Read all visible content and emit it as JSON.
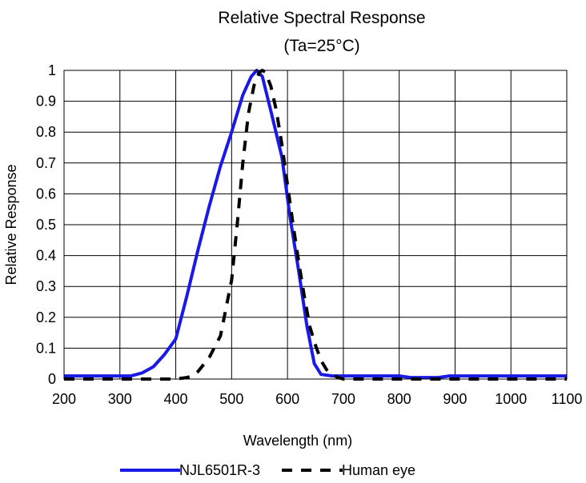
{
  "chart_data": {
    "type": "line",
    "title": "Relative Spectral Response",
    "subtitle": "(Ta=25°C)",
    "xlabel": "Wavelength (nm)",
    "ylabel": "Relative Response",
    "xlim": [
      200,
      1100
    ],
    "ylim": [
      0,
      1
    ],
    "xticks": [
      200,
      300,
      400,
      500,
      600,
      700,
      800,
      900,
      1000,
      1100
    ],
    "yticks": [
      0,
      0.1,
      0.2,
      0.3,
      0.4,
      0.5,
      0.6,
      0.7,
      0.8,
      0.9,
      1
    ],
    "xtick_labels": [
      "200",
      "300",
      "400",
      "500",
      "600",
      "700",
      "800",
      "900",
      "1000",
      "1100"
    ],
    "ytick_labels": [
      "0",
      "0.1",
      "0.2",
      "0.3",
      "0.4",
      "0.5",
      "0.6",
      "0.7",
      "0.8",
      "0.9",
      "1"
    ],
    "grid": true,
    "legend_position": "bottom",
    "series": [
      {
        "name": "NJL6501R-3",
        "color": "#1a1ae6",
        "style": "solid",
        "points": [
          [
            200,
            0.01
          ],
          [
            320,
            0.01
          ],
          [
            340,
            0.02
          ],
          [
            360,
            0.04
          ],
          [
            380,
            0.08
          ],
          [
            400,
            0.13
          ],
          [
            420,
            0.27
          ],
          [
            440,
            0.42
          ],
          [
            460,
            0.56
          ],
          [
            480,
            0.69
          ],
          [
            500,
            0.8
          ],
          [
            520,
            0.92
          ],
          [
            535,
            0.98
          ],
          [
            545,
            1.0
          ],
          [
            555,
            0.98
          ],
          [
            570,
            0.87
          ],
          [
            590,
            0.72
          ],
          [
            605,
            0.52
          ],
          [
            620,
            0.35
          ],
          [
            635,
            0.17
          ],
          [
            648,
            0.05
          ],
          [
            660,
            0.015
          ],
          [
            680,
            0.01
          ],
          [
            800,
            0.01
          ],
          [
            820,
            0.005
          ],
          [
            870,
            0.005
          ],
          [
            890,
            0.01
          ],
          [
            1100,
            0.01
          ]
        ]
      },
      {
        "name": "Human eye",
        "color": "#000000",
        "style": "dashed",
        "points": [
          [
            200,
            0.0
          ],
          [
            400,
            0.0
          ],
          [
            420,
            0.005
          ],
          [
            430,
            0.01
          ],
          [
            440,
            0.025
          ],
          [
            460,
            0.07
          ],
          [
            480,
            0.14
          ],
          [
            500,
            0.32
          ],
          [
            510,
            0.5
          ],
          [
            520,
            0.7
          ],
          [
            530,
            0.86
          ],
          [
            540,
            0.95
          ],
          [
            550,
            0.995
          ],
          [
            555,
            1.0
          ],
          [
            560,
            0.995
          ],
          [
            570,
            0.95
          ],
          [
            580,
            0.87
          ],
          [
            590,
            0.76
          ],
          [
            600,
            0.63
          ],
          [
            610,
            0.5
          ],
          [
            620,
            0.38
          ],
          [
            630,
            0.27
          ],
          [
            640,
            0.17
          ],
          [
            650,
            0.11
          ],
          [
            660,
            0.06
          ],
          [
            670,
            0.03
          ],
          [
            680,
            0.015
          ],
          [
            690,
            0.005
          ],
          [
            700,
            0.0
          ],
          [
            1100,
            0.0
          ]
        ]
      }
    ]
  }
}
